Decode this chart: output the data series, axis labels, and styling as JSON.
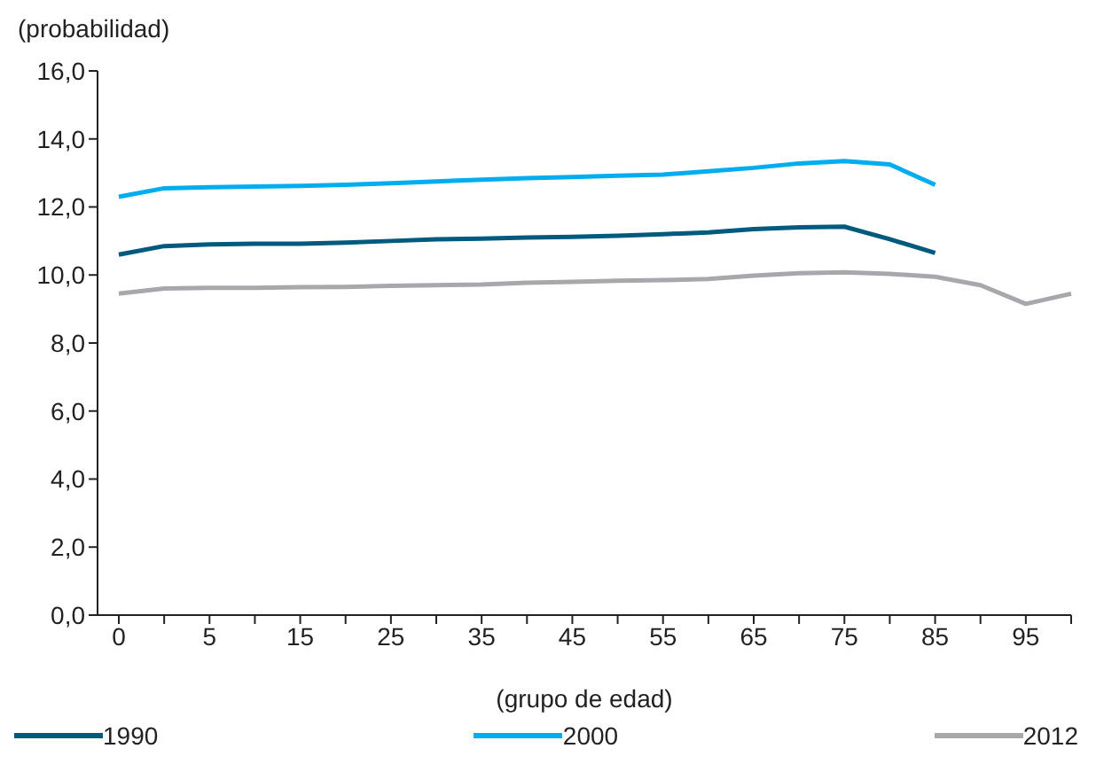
{
  "chart_data": {
    "type": "line",
    "ylabel": "(probabilidad)",
    "xlabel": "(grupo de edad)",
    "categories": [
      "0",
      null,
      "5",
      null,
      "15",
      null,
      "25",
      null,
      "35",
      null,
      "45",
      null,
      "55",
      null,
      "65",
      null,
      "75",
      null,
      "85",
      null,
      "95",
      null
    ],
    "series": [
      {
        "name": "1990",
        "color": "#005a7e",
        "values": [
          10.6,
          10.85,
          10.9,
          10.92,
          10.92,
          10.95,
          11.0,
          11.05,
          11.07,
          11.1,
          11.12,
          11.15,
          11.2,
          11.25,
          11.35,
          11.4,
          11.42,
          11.05,
          10.65,
          null,
          null,
          null
        ]
      },
      {
        "name": "2000",
        "color": "#00aeef",
        "values": [
          12.3,
          12.55,
          12.58,
          12.6,
          12.62,
          12.65,
          12.7,
          12.75,
          12.8,
          12.85,
          12.88,
          12.92,
          12.95,
          13.05,
          13.15,
          13.28,
          13.35,
          13.25,
          12.65,
          null,
          null,
          null
        ]
      },
      {
        "name": "2012",
        "color": "#a6a8ab",
        "values": [
          9.45,
          9.6,
          9.62,
          9.62,
          9.64,
          9.65,
          9.68,
          9.7,
          9.72,
          9.77,
          9.8,
          9.83,
          9.85,
          9.88,
          9.98,
          10.05,
          10.08,
          10.03,
          9.95,
          9.7,
          9.15,
          9.45
        ]
      }
    ],
    "ylim": [
      0,
      16
    ],
    "yticks": [
      {
        "value": 0,
        "label": "0,0"
      },
      {
        "value": 2,
        "label": "2,0"
      },
      {
        "value": 4,
        "label": "4,0"
      },
      {
        "value": 6,
        "label": "6,0"
      },
      {
        "value": 8,
        "label": "8,0"
      },
      {
        "value": 10,
        "label": "10,0"
      },
      {
        "value": 12,
        "label": "12,0"
      },
      {
        "value": 14,
        "label": "14,0"
      },
      {
        "value": 16,
        "label": "16,0"
      }
    ],
    "grid": false,
    "legend": "bottom",
    "marker": "none",
    "line_style": "solid"
  }
}
